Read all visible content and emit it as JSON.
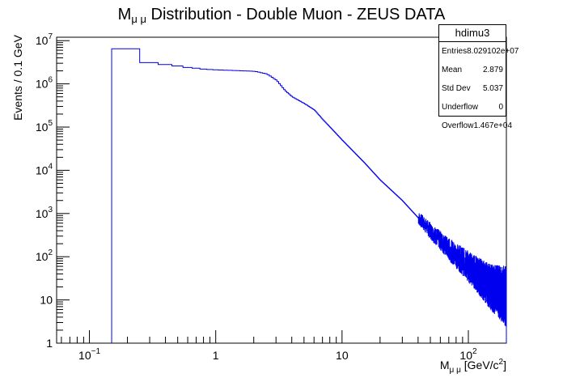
{
  "chart_data": {
    "type": "histogram",
    "title": "M",
    "title_sub": "μ μ",
    "title_rest": " Distribution - Double Muon - ZEUS DATA",
    "ylabel": "Events / 0.1 GeV",
    "xlabel_main": "M",
    "xlabel_sub": "μ μ",
    "xlabel_rest": " [GeV/c",
    "xlabel_sup": "2",
    "xlabel_end": "]",
    "x_scale": "log",
    "y_scale": "log",
    "xlim": [
      0.055,
      200
    ],
    "ylim": [
      1,
      12000000
    ],
    "x_ticks": [
      {
        "value": 0.1,
        "base": "10",
        "exp": "−1"
      },
      {
        "value": 1,
        "label": "1"
      },
      {
        "value": 10,
        "label": "10"
      },
      {
        "value": 100,
        "base": "10",
        "exp": "2"
      }
    ],
    "y_ticks": [
      {
        "value": 1,
        "label": "1"
      },
      {
        "value": 10,
        "label": "10"
      },
      {
        "value": 100,
        "base": "10",
        "exp": "2"
      },
      {
        "value": 1000,
        "base": "10",
        "exp": "3"
      },
      {
        "value": 10000,
        "base": "10",
        "exp": "4"
      },
      {
        "value": 100000,
        "base": "10",
        "exp": "5"
      },
      {
        "value": 1000000,
        "base": "10",
        "exp": "6"
      },
      {
        "value": 10000000,
        "base": "10",
        "exp": "7"
      }
    ],
    "line_color": "#0000ee",
    "noise_from_x": 40,
    "series": [
      {
        "name": "hdimu3",
        "bins": [
          [
            0.15,
            0.25,
            6500000
          ],
          [
            0.25,
            0.35,
            3100000
          ],
          [
            0.35,
            0.45,
            2800000
          ],
          [
            0.45,
            0.55,
            2600000
          ],
          [
            0.55,
            0.65,
            2400000
          ],
          [
            0.65,
            0.75,
            2300000
          ],
          [
            0.75,
            0.85,
            2200000
          ]
        ],
        "curve": [
          [
            0.85,
            2150000
          ],
          [
            1,
            2100000
          ],
          [
            1.3,
            2050000
          ],
          [
            1.6,
            2000000
          ],
          [
            2,
            1950000
          ],
          [
            2.5,
            1700000
          ],
          [
            3,
            1200000
          ],
          [
            3.5,
            700000
          ],
          [
            4,
            500000
          ],
          [
            5,
            350000
          ],
          [
            6,
            250000
          ],
          [
            7,
            150000
          ],
          [
            8,
            100000
          ],
          [
            10,
            50000
          ],
          [
            15,
            15000
          ],
          [
            20,
            6000
          ],
          [
            30,
            2000
          ],
          [
            40,
            800
          ],
          [
            50,
            400
          ],
          [
            70,
            150
          ],
          [
            100,
            60
          ],
          [
            150,
            20
          ],
          [
            200,
            12
          ]
        ]
      }
    ]
  },
  "stats": {
    "title": "hdimu3",
    "rows": [
      {
        "label": "Entries",
        "value": "8.029102e+07"
      },
      {
        "label": "Mean",
        "value": "2.879"
      },
      {
        "label": "Std Dev",
        "value": "5.037"
      },
      {
        "label": "Underflow",
        "value": "0"
      },
      {
        "label": "Overflow",
        "value": "1.467e+04"
      }
    ]
  }
}
